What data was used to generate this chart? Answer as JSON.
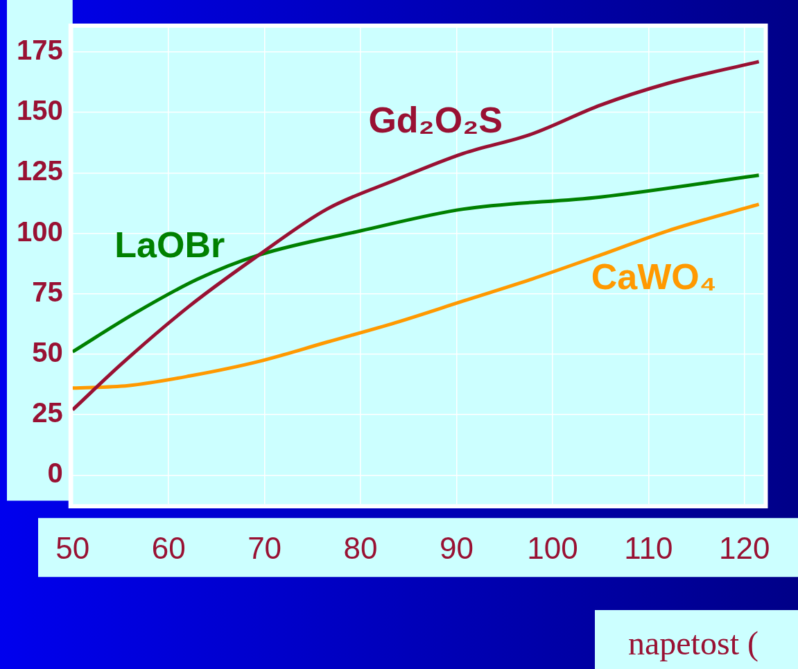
{
  "chart_data": {
    "type": "line",
    "xlabel": "napetost (",
    "xlim": [
      50,
      122
    ],
    "xticks": [
      50,
      60,
      70,
      80,
      90,
      100,
      110,
      120
    ],
    "ylim": [
      -12,
      185
    ],
    "yticks": [
      0,
      25,
      50,
      75,
      100,
      125,
      150,
      175
    ],
    "grid": true,
    "legend": false,
    "marker": "none",
    "line_style": "solid",
    "series": [
      {
        "name": "Gd₂O₂S",
        "color": "#991133",
        "x": [
          50,
          55.1,
          62.2,
          69.4,
          76.5,
          83.6,
          90.7,
          97.8,
          105,
          112,
          121.5
        ],
        "values": [
          27,
          46,
          70,
          91,
          110,
          122,
          133,
          141,
          153,
          162,
          171
        ]
      },
      {
        "name": "LaOBr",
        "color": "#008000",
        "x": [
          50,
          56.5,
          63,
          69.4,
          80,
          90.7,
          105,
          121.5
        ],
        "values": [
          51,
          67,
          81,
          91,
          101,
          110,
          115,
          124
        ]
      },
      {
        "name": "CaWO₄",
        "color": "#ff9900",
        "x": [
          50,
          55.8,
          62.2,
          69.4,
          76.5,
          83.6,
          90.7,
          97.8,
          105,
          112,
          121.5
        ],
        "values": [
          36,
          37,
          41,
          47,
          55,
          63,
          72,
          81,
          91,
          101,
          112
        ]
      }
    ]
  }
}
